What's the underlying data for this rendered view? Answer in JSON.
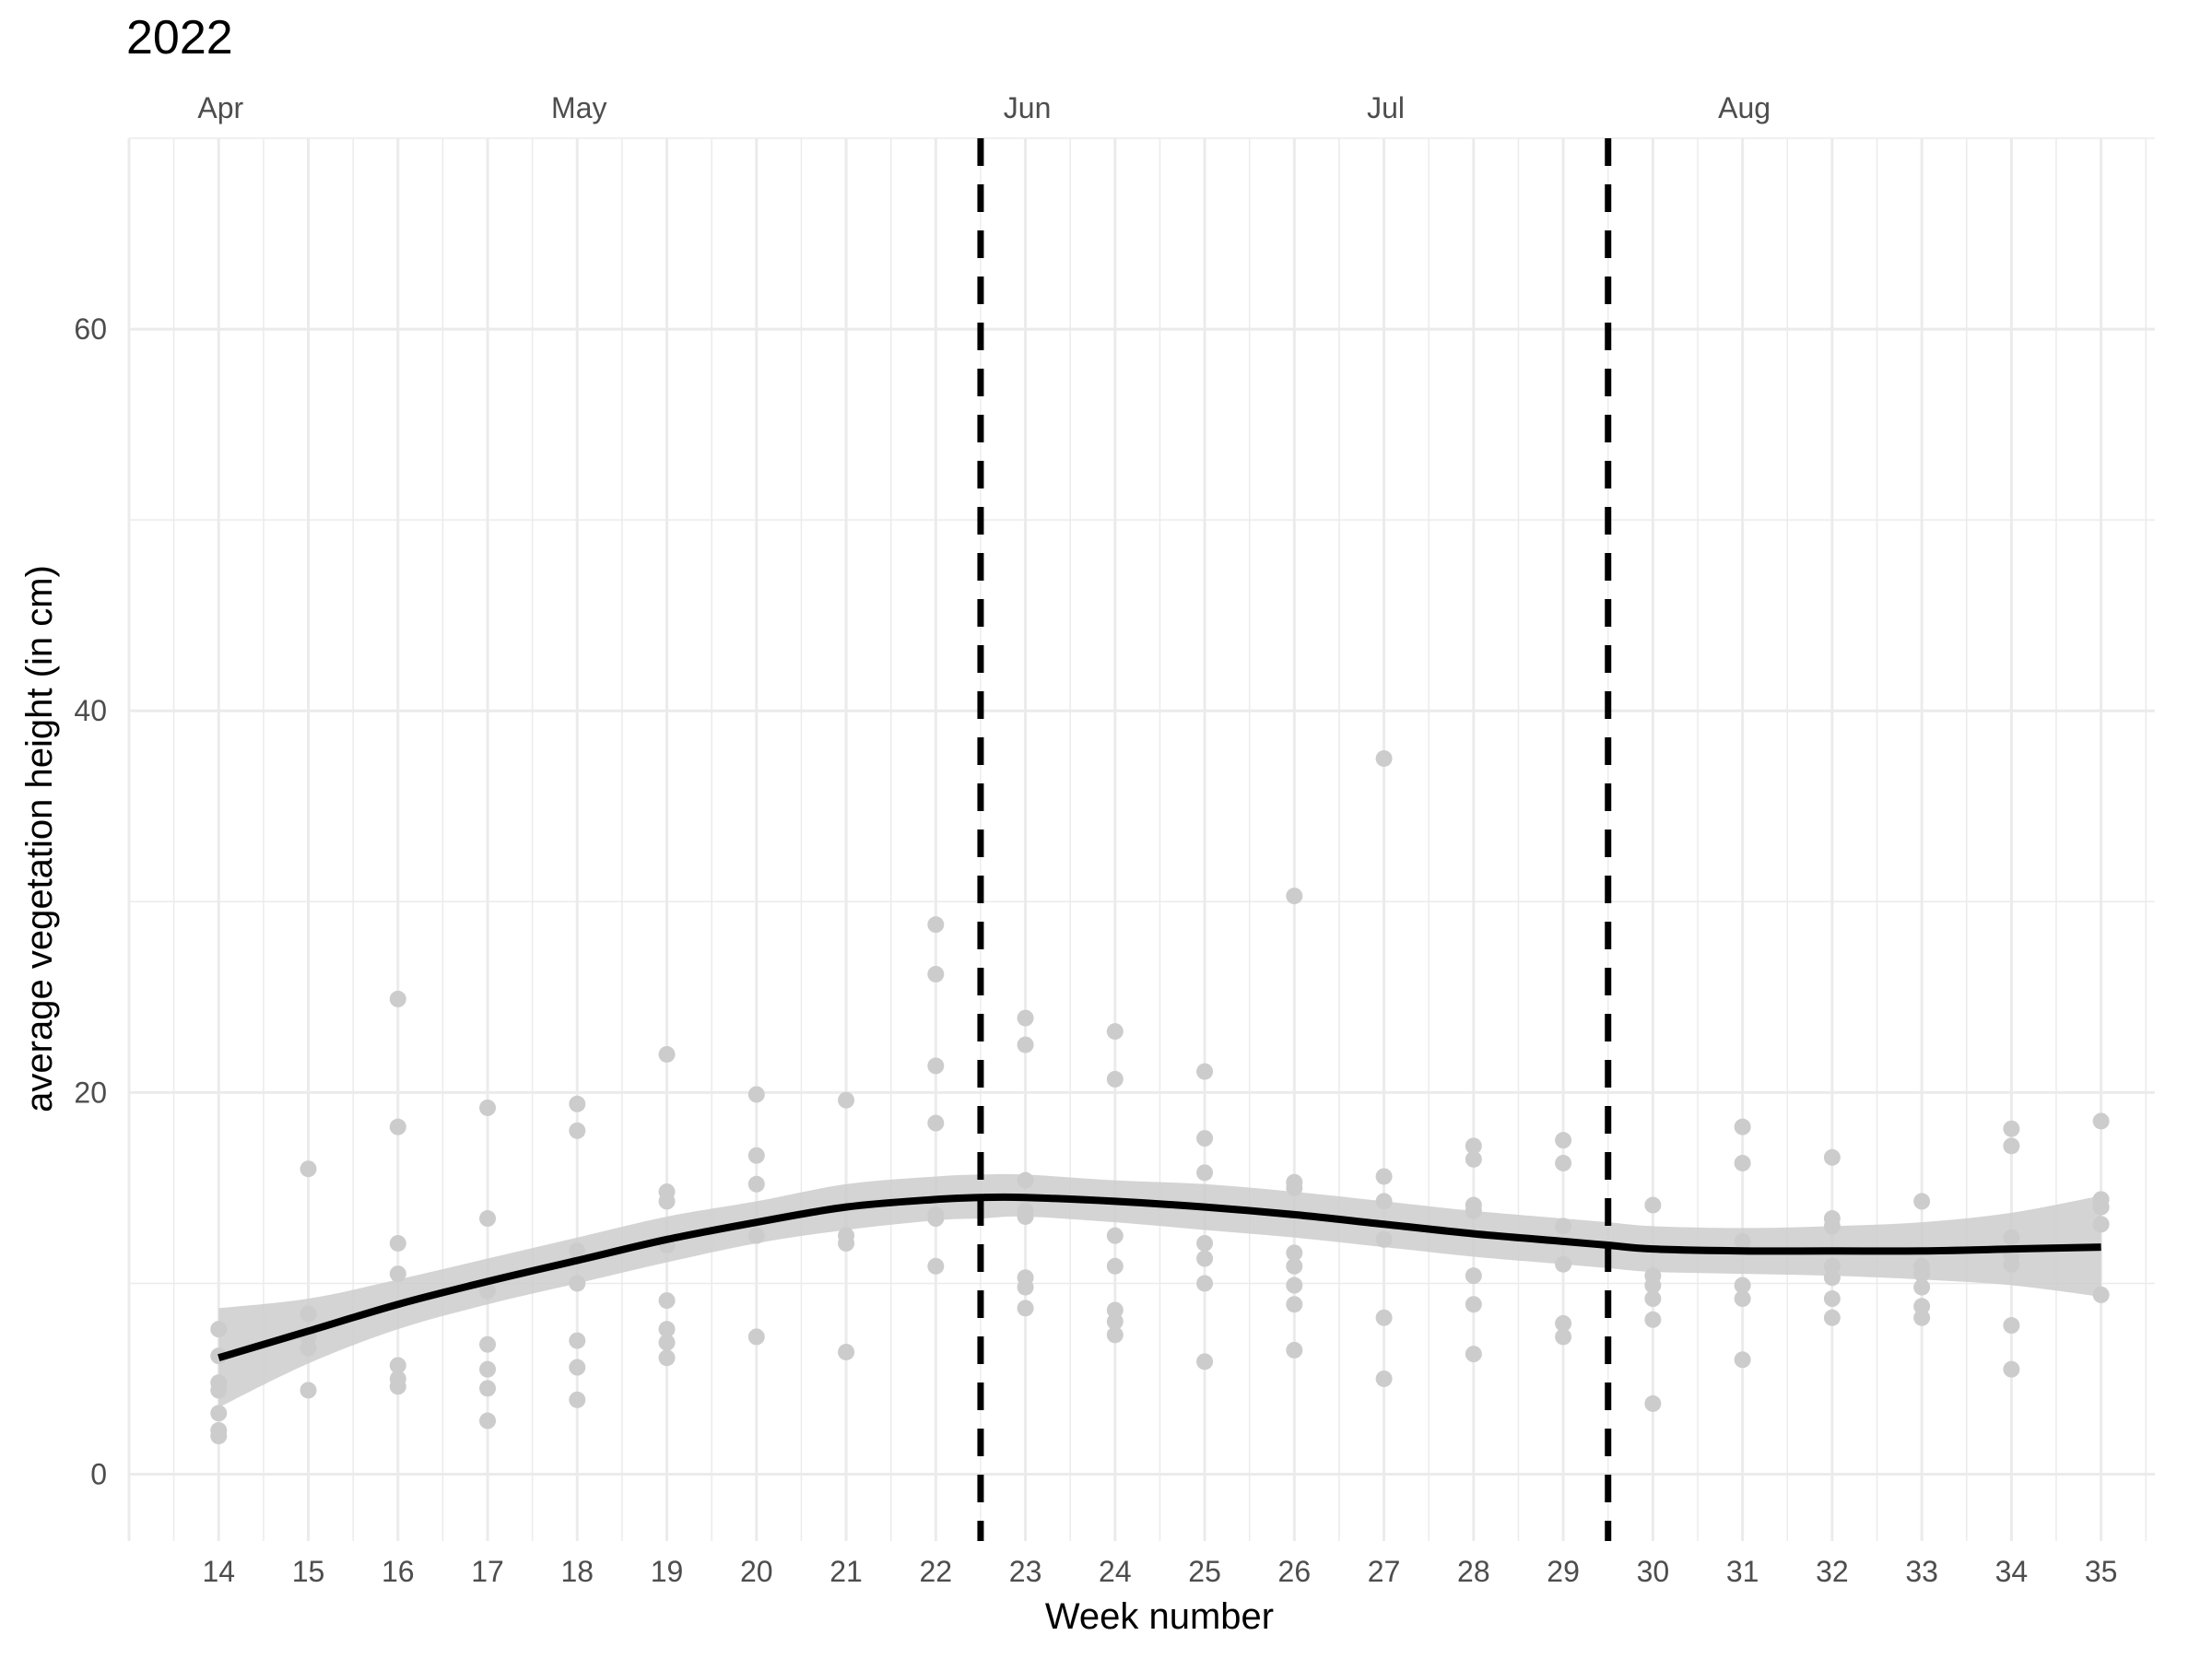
{
  "chart_data": {
    "type": "scatter",
    "title": "2022",
    "xlabel": "Week number",
    "ylabel": "average vegetation height (in cm)",
    "xlim": [
      13,
      35.6
    ],
    "ylim": [
      -3.5,
      70
    ],
    "x_ticks": [
      14,
      15,
      16,
      17,
      18,
      19,
      20,
      21,
      22,
      23,
      24,
      25,
      26,
      27,
      28,
      29,
      30,
      31,
      32,
      33,
      34,
      35
    ],
    "y_ticks": [
      0,
      20,
      40,
      60
    ],
    "grid": true,
    "month_labels": [
      {
        "label": "Apr",
        "week": 14
      },
      {
        "label": "May",
        "week": 18
      },
      {
        "label": "Jun",
        "week": 23
      },
      {
        "label": "Jul",
        "week": 27
      },
      {
        "label": "Aug",
        "week": 31
      }
    ],
    "vertical_lines": [
      22.5,
      29.5
    ],
    "colors": {
      "points": "#cccccc",
      "smooth": "#000000",
      "ribbon": "#cccccc",
      "grid": "#ebebeb"
    },
    "series": [
      {
        "type": "points",
        "points": [
          [
            14,
            7.6
          ],
          [
            14,
            6.2
          ],
          [
            14,
            4.8
          ],
          [
            14,
            4.4
          ],
          [
            14,
            3.2
          ],
          [
            14,
            2.3
          ],
          [
            14,
            2.0
          ],
          [
            15,
            16.0
          ],
          [
            15,
            8.4
          ],
          [
            15,
            7.2
          ],
          [
            15,
            6.6
          ],
          [
            15,
            4.4
          ],
          [
            16,
            24.9
          ],
          [
            16,
            18.2
          ],
          [
            16,
            12.1
          ],
          [
            16,
            10.5
          ],
          [
            16,
            5.7
          ],
          [
            16,
            5.0
          ],
          [
            16,
            4.6
          ],
          [
            17,
            19.2
          ],
          [
            17,
            13.4
          ],
          [
            17,
            9.6
          ],
          [
            17,
            6.8
          ],
          [
            17,
            5.5
          ],
          [
            17,
            4.5
          ],
          [
            17,
            2.8
          ],
          [
            18,
            19.4
          ],
          [
            18,
            18.0
          ],
          [
            18,
            11.7
          ],
          [
            18,
            10.0
          ],
          [
            18,
            7.0
          ],
          [
            18,
            5.6
          ],
          [
            18,
            3.9
          ],
          [
            19,
            22.0
          ],
          [
            19,
            14.8
          ],
          [
            19,
            14.3
          ],
          [
            19,
            12.0
          ],
          [
            19,
            9.1
          ],
          [
            19,
            7.6
          ],
          [
            19,
            6.9
          ],
          [
            19,
            6.1
          ],
          [
            20,
            19.9
          ],
          [
            20,
            16.7
          ],
          [
            20,
            15.2
          ],
          [
            20,
            12.5
          ],
          [
            20,
            7.2
          ],
          [
            21,
            19.6
          ],
          [
            21,
            12.5
          ],
          [
            21,
            12.1
          ],
          [
            21,
            6.4
          ],
          [
            22,
            28.8
          ],
          [
            22,
            26.2
          ],
          [
            22,
            21.4
          ],
          [
            22,
            18.4
          ],
          [
            22,
            13.6
          ],
          [
            22,
            13.4
          ],
          [
            22,
            10.9
          ],
          [
            23,
            23.9
          ],
          [
            23,
            22.5
          ],
          [
            23,
            15.4
          ],
          [
            23,
            13.8
          ],
          [
            23,
            13.5
          ],
          [
            23,
            10.3
          ],
          [
            23,
            9.8
          ],
          [
            23,
            8.7
          ],
          [
            24,
            23.2
          ],
          [
            24,
            20.7
          ],
          [
            24,
            12.5
          ],
          [
            24,
            10.9
          ],
          [
            24,
            8.6
          ],
          [
            24,
            8.0
          ],
          [
            24,
            7.3
          ],
          [
            25,
            21.1
          ],
          [
            25,
            17.6
          ],
          [
            25,
            15.8
          ],
          [
            25,
            12.1
          ],
          [
            25,
            11.3
          ],
          [
            25,
            10.0
          ],
          [
            25,
            5.9
          ],
          [
            26,
            30.3
          ],
          [
            26,
            15.3
          ],
          [
            26,
            15.0
          ],
          [
            26,
            11.6
          ],
          [
            26,
            10.9
          ],
          [
            26,
            9.9
          ],
          [
            26,
            8.9
          ],
          [
            26,
            6.5
          ],
          [
            27,
            37.5
          ],
          [
            27,
            15.6
          ],
          [
            27,
            14.3
          ],
          [
            27,
            12.3
          ],
          [
            27,
            8.2
          ],
          [
            27,
            5.0
          ],
          [
            28,
            17.2
          ],
          [
            28,
            16.5
          ],
          [
            28,
            14.1
          ],
          [
            28,
            13.8
          ],
          [
            28,
            10.4
          ],
          [
            28,
            8.9
          ],
          [
            28,
            6.3
          ],
          [
            29,
            17.5
          ],
          [
            29,
            16.3
          ],
          [
            29,
            13.0
          ],
          [
            29,
            11.0
          ],
          [
            29,
            7.9
          ],
          [
            29,
            7.2
          ],
          [
            30,
            14.1
          ],
          [
            30,
            10.4
          ],
          [
            30,
            9.9
          ],
          [
            30,
            9.2
          ],
          [
            30,
            8.1
          ],
          [
            30,
            3.7
          ],
          [
            31,
            18.2
          ],
          [
            31,
            16.3
          ],
          [
            31,
            12.2
          ],
          [
            31,
            9.9
          ],
          [
            31,
            9.2
          ],
          [
            31,
            6.0
          ],
          [
            32,
            16.6
          ],
          [
            32,
            13.4
          ],
          [
            32,
            13.0
          ],
          [
            32,
            10.9
          ],
          [
            32,
            10.3
          ],
          [
            32,
            9.2
          ],
          [
            32,
            8.2
          ],
          [
            33,
            14.3
          ],
          [
            33,
            10.9
          ],
          [
            33,
            10.5
          ],
          [
            33,
            9.8
          ],
          [
            33,
            8.8
          ],
          [
            33,
            8.2
          ],
          [
            34,
            18.1
          ],
          [
            34,
            17.2
          ],
          [
            34,
            12.4
          ],
          [
            34,
            11.5
          ],
          [
            34,
            11.0
          ],
          [
            34,
            7.8
          ],
          [
            34,
            5.5
          ],
          [
            35,
            18.5
          ],
          [
            35,
            14.4
          ],
          [
            35,
            14.0
          ],
          [
            35,
            13.1
          ],
          [
            35,
            9.4
          ]
        ]
      },
      {
        "type": "smooth",
        "x": [
          14,
          15,
          16,
          17,
          18,
          19,
          20,
          21,
          22,
          22.5,
          23,
          24,
          25,
          26,
          27,
          28,
          29,
          29.5,
          30,
          31,
          32,
          33,
          34,
          35
        ],
        "y": [
          6.1,
          7.5,
          8.9,
          10.1,
          11.2,
          12.3,
          13.2,
          14.0,
          14.4,
          14.5,
          14.5,
          14.3,
          14.0,
          13.6,
          13.1,
          12.6,
          12.2,
          12.0,
          11.8,
          11.7,
          11.7,
          11.7,
          11.8,
          11.9
        ],
        "lower": [
          3.5,
          5.8,
          7.6,
          8.9,
          10.0,
          11.1,
          12.1,
          12.8,
          13.3,
          13.4,
          13.5,
          13.2,
          12.8,
          12.4,
          11.9,
          11.4,
          11.0,
          10.8,
          10.6,
          10.5,
          10.4,
          10.2,
          9.9,
          9.3
        ],
        "upper": [
          8.7,
          9.2,
          10.2,
          11.3,
          12.4,
          13.5,
          14.3,
          15.2,
          15.6,
          15.7,
          15.7,
          15.4,
          15.2,
          14.8,
          14.3,
          13.8,
          13.4,
          13.2,
          13.0,
          12.9,
          13.0,
          13.2,
          13.7,
          14.6
        ]
      }
    ]
  }
}
